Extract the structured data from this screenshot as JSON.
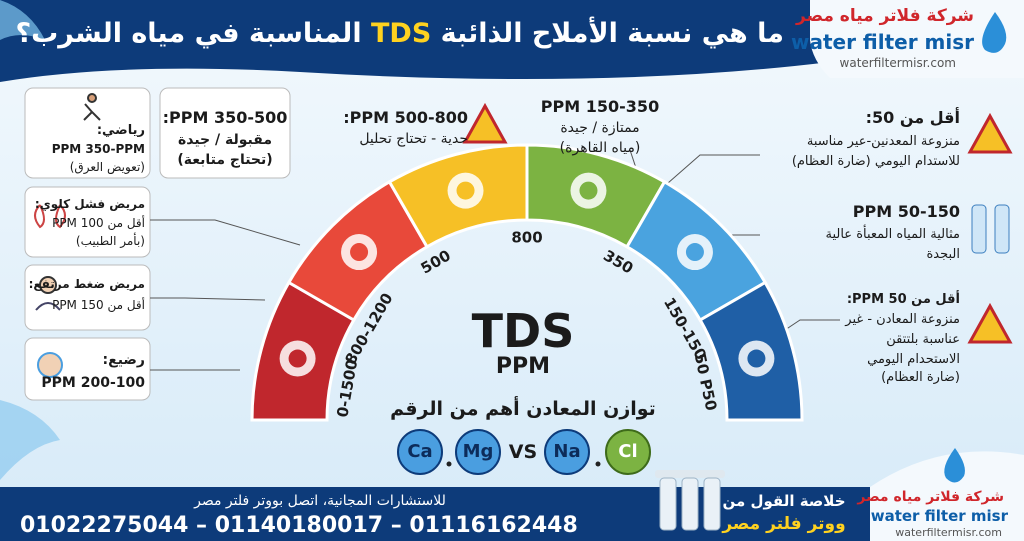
{
  "header": {
    "title_before": "ما هي نسبة الأملاح الذائبة",
    "title_highlight": "TDS",
    "title_after": "المناسبة في مياه الشرب؟"
  },
  "logo": {
    "name_ar": "شركة فلاتر مياه مصر",
    "name_en": "water filter misr",
    "website": "waterfiltermisr.com"
  },
  "left_cards": [
    {
      "title": "رياضي:",
      "lines": [
        "PPM 350-PPM",
        "(تعويض العرق)"
      ]
    },
    {
      "title": "مريض فشل كلوي:",
      "lines": [
        "أقل من 100 PPM",
        "(بأمر الطبيب)"
      ]
    },
    {
      "title": "مريض ضغط مرتفع:",
      "lines": [
        "أقل من 150 PPM"
      ]
    },
    {
      "title": "رضيع:",
      "lines": [
        "PPM 200-100"
      ]
    }
  ],
  "acceptable": {
    "title": "350-500 PPM:",
    "lines": [
      "مقبولة / جيدة",
      "(تحتاج متابعة)"
    ]
  },
  "top_labels": [
    {
      "title": "500-800 PPM:",
      "lines": [
        "حدية - تحتاج تحليل"
      ]
    },
    {
      "title": "150-350 PPM",
      "lines": [
        "ممتازة / جيدة",
        "(مياه القاهرة)"
      ]
    }
  ],
  "right_labels": [
    {
      "title": "أقل من 50:",
      "lines": [
        "منزوعة المعدنين-عير مناسبة",
        "للاستدام اليومي (ضارة العظام)"
      ]
    },
    {
      "title": "50-150 PPM",
      "lines": [
        "مثالية المياه المعبأة عالية",
        "البجدة"
      ]
    },
    {
      "title": "أقل من PPM 50:",
      "lines": [
        "منزوعة المعادن - غير",
        "عناسبة بلتتقن",
        "الاستحدام اليومي",
        "(ضارة العظام)"
      ]
    }
  ],
  "gauge": {
    "labels": [
      "0-1500",
      "800-1200",
      "500",
      "800",
      "350",
      "150-150",
      "50 P50"
    ],
    "center_title": "TDS",
    "center_unit": "PPM"
  },
  "balance": {
    "title": "توازن المعادن أهم من الرقم",
    "left": [
      "Ca",
      "Mg"
    ],
    "vs": "VS",
    "right": [
      "Na",
      "Cl"
    ]
  },
  "footer": {
    "consult": "للاستشارات المجانية، اتصل بووتر فلتر مصر",
    "phones": "01022275044 – 01140180017 – 01116162448",
    "summary": [
      "خلاصة القول من",
      "ووتر فلتر مصر"
    ]
  },
  "footer_logo": {
    "name_ar": "شركة فلاتر مياه مصر",
    "name_en": "water filter misr",
    "website": "waterfiltermisr.com"
  }
}
